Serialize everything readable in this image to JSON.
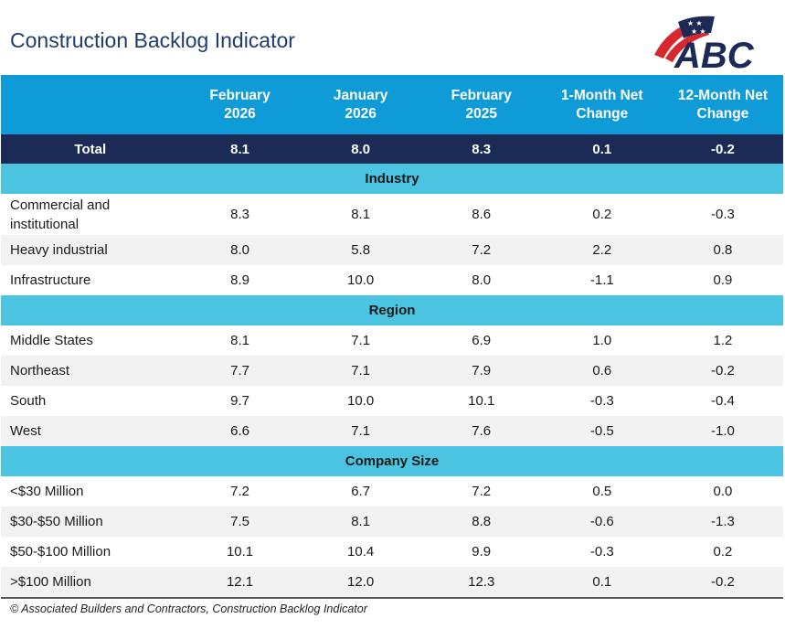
{
  "title": "Construction Backlog Indicator",
  "logo_text": "ABC",
  "footer": "© Associated Builders and Contractors, Construction Backlog Indicator",
  "colors": {
    "header": "#0f9ad8",
    "total": "#1b2b55",
    "section": "#4bc4e1",
    "alt_row": "#f2f2f2",
    "title": "#1c3d6e"
  },
  "chart_data": {
    "type": "table",
    "columns": [
      [
        "February",
        "2026"
      ],
      [
        "January",
        "2026"
      ],
      [
        "February",
        "2025"
      ],
      [
        "1-Month Net",
        "Change"
      ],
      [
        "12-Month Net",
        "Change"
      ]
    ],
    "total": {
      "label": "Total",
      "values": [
        "8.1",
        "8.0",
        "8.3",
        "0.1",
        "-0.2"
      ]
    },
    "sections": [
      {
        "name": "Industry",
        "rows": [
          {
            "label": "Commercial and institutional",
            "values": [
              "8.3",
              "8.1",
              "8.6",
              "0.2",
              "-0.3"
            ]
          },
          {
            "label": "Heavy industrial",
            "values": [
              "8.0",
              "5.8",
              "7.2",
              "2.2",
              "0.8"
            ]
          },
          {
            "label": "Infrastructure",
            "values": [
              "8.9",
              "10.0",
              "8.0",
              "-1.1",
              "0.9"
            ]
          }
        ]
      },
      {
        "name": "Region",
        "rows": [
          {
            "label": "Middle States",
            "values": [
              "8.1",
              "7.1",
              "6.9",
              "1.0",
              "1.2"
            ]
          },
          {
            "label": "Northeast",
            "values": [
              "7.7",
              "7.1",
              "7.9",
              "0.6",
              "-0.2"
            ]
          },
          {
            "label": "South",
            "values": [
              "9.7",
              "10.0",
              "10.1",
              "-0.3",
              "-0.4"
            ]
          },
          {
            "label": "West",
            "values": [
              "6.6",
              "7.1",
              "7.6",
              "-0.5",
              "-1.0"
            ]
          }
        ]
      },
      {
        "name": "Company Size",
        "rows": [
          {
            "label": "<$30 Million",
            "values": [
              "7.2",
              "6.7",
              "7.2",
              "0.5",
              "0.0"
            ]
          },
          {
            "label": "$30-$50 Million",
            "values": [
              "7.5",
              "8.1",
              "8.8",
              "-0.6",
              "-1.3"
            ]
          },
          {
            "label": "$50-$100 Million",
            "values": [
              "10.1",
              "10.4",
              "9.9",
              "-0.3",
              "0.2"
            ]
          },
          {
            "label": ">$100 Million",
            "values": [
              "12.1",
              "12.0",
              "12.3",
              "0.1",
              "-0.2"
            ]
          }
        ]
      }
    ]
  }
}
